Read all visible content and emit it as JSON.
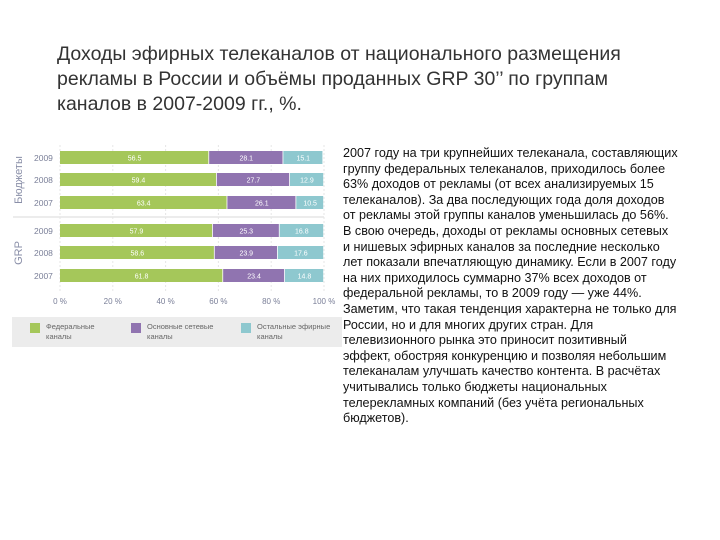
{
  "title": "Доходы эфирных телеканалов от национального размещения рекламы в России и объёмы проданных GRP 30’’ по группам каналов в 2007-2009 гг., %.",
  "body_text": "2007 году на три крупнейших телеканала, составляющих группу федеральных телеканалов, приходилось более 63% доходов от рекламы (от всех анализируемых 15 телеканалов). За два последующих года доля доходов от рекламы этой группы каналов уменьшилась до 56%. В свою очередь, доходы от рекламы основных сетевых и нишевых эфирных каналов за последние несколько лет показали впечатляющую динамику. Если в 2007 году на них приходилось суммарно 37% всех доходов от федеральной рекламы, то в 2009 году — уже 44%. Заметим, что такая тенденция характерна не только для России, но и для многих других стран. Для телевизионного рынка это приносит позитивный эффект, обостряя конкуренцию и позволяя небольшим телеканалам улучшать качество контента. В расчётах учитывались только бюджеты национальных телерекламных компаний (без учёта региональных бюджетов).",
  "chart_data": {
    "type": "bar",
    "orientation": "horizontal",
    "stacked": true,
    "groups": [
      {
        "label": "Бюджеты",
        "years": [
          "2009",
          "2008",
          "2007"
        ]
      },
      {
        "label": "GRP",
        "years": [
          "2009",
          "2008",
          "2007"
        ]
      }
    ],
    "series": [
      {
        "name": "Федеральные каналы",
        "color": "#a5c75a",
        "values": [
          56.5,
          59.4,
          63.4,
          57.9,
          58.6,
          61.8
        ]
      },
      {
        "name": "Основные сетевые каналы",
        "color": "#9074b0",
        "values": [
          28.1,
          27.7,
          26.1,
          25.3,
          23.9,
          23.4
        ]
      },
      {
        "name": "Остальные эфирные каналы",
        "color": "#8ec8cf",
        "values": [
          15.1,
          12.9,
          10.5,
          16.8,
          17.6,
          14.8
        ]
      }
    ],
    "value_labels": [
      [
        "56.5",
        "28.1",
        "15.1"
      ],
      [
        "59.4",
        "27.7",
        "12.9"
      ],
      [
        "63.4",
        "26.1",
        "10.5"
      ],
      [
        "57.9",
        "25.3",
        "16.8"
      ],
      [
        "58.6",
        "23.9",
        "17.6"
      ],
      [
        "61.8",
        "23.4",
        "14.8"
      ]
    ],
    "x_ticks": [
      "0 %",
      "20 %",
      "40 %",
      "60 %",
      "80 %",
      "100 %"
    ],
    "xlim": [
      0,
      100
    ],
    "legend": [
      {
        "line1": "Федеральные",
        "line2": "каналы"
      },
      {
        "line1": "Основные сетевые",
        "line2": "каналы"
      },
      {
        "line1": "Остальные эфирные",
        "line2": "каналы"
      }
    ],
    "legend_position": "bottom",
    "grid": true
  }
}
